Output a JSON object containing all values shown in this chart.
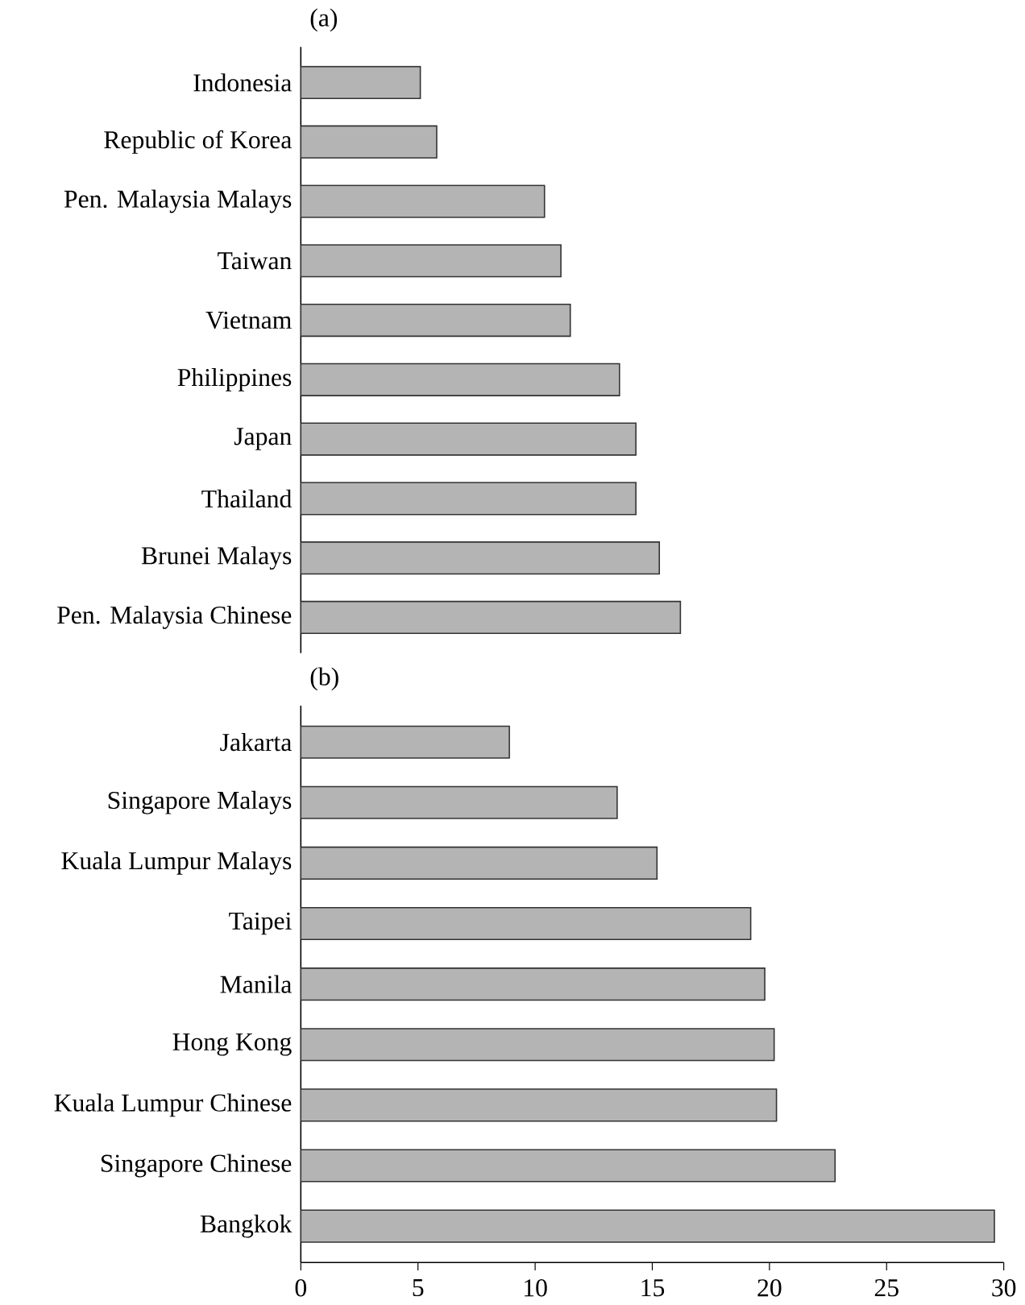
{
  "chart_data": [
    {
      "type": "bar",
      "orientation": "horizontal",
      "title": "(a)",
      "categories": [
        "Indonesia",
        "Republic of Korea",
        "Pen. Malaysia Malays",
        "Taiwan",
        "Vietnam",
        "Philippines",
        "Japan",
        "Thailand",
        "Brunei Malays",
        "Pen. Malaysia Chinese"
      ],
      "values": [
        5.1,
        5.8,
        10.4,
        11.1,
        11.5,
        13.6,
        14.3,
        14.3,
        15.3,
        16.2
      ],
      "color": "#b4b4b4",
      "xlim": [
        0,
        30
      ],
      "tick_labels": "y"
    },
    {
      "type": "bar",
      "orientation": "horizontal",
      "title": "(b)",
      "categories": [
        "Jakarta",
        "Singapore Malays",
        "Kuala Lumpur Malays",
        "Taipei",
        "Manila",
        "Hong Kong",
        "Kuala Lumpur Chinese",
        "Singapore Chinese",
        "Bangkok"
      ],
      "values": [
        8.9,
        13.5,
        15.2,
        19.2,
        19.8,
        20.2,
        20.3,
        22.8,
        29.6
      ],
      "color": "#b4b4b4",
      "xlim": [
        0,
        30
      ],
      "xticks": [
        0,
        5,
        10,
        15,
        20,
        25,
        30
      ]
    }
  ]
}
